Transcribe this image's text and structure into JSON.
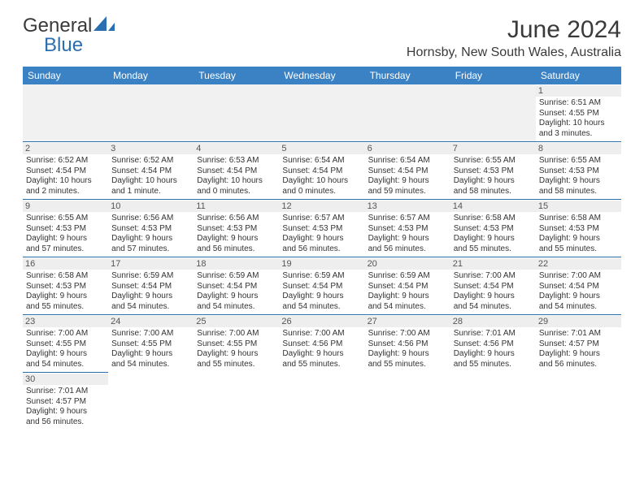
{
  "brand": {
    "part1": "General",
    "part2": "Blue"
  },
  "title": "June 2024",
  "location": "Hornsby, New South Wales, Australia",
  "colors": {
    "header_bg": "#3b82c4",
    "header_fg": "#ffffff",
    "row_border": "#2a6fb0",
    "daynum_bg": "#eeeeee",
    "brand_blue": "#2a6fb0",
    "text": "#3a3a3a"
  },
  "day_headers": [
    "Sunday",
    "Monday",
    "Tuesday",
    "Wednesday",
    "Thursday",
    "Friday",
    "Saturday"
  ],
  "weeks": [
    [
      null,
      null,
      null,
      null,
      null,
      null,
      {
        "n": "1",
        "sunrise": "Sunrise: 6:51 AM",
        "sunset": "Sunset: 4:55 PM",
        "day1": "Daylight: 10 hours",
        "day2": "and 3 minutes."
      }
    ],
    [
      {
        "n": "2",
        "sunrise": "Sunrise: 6:52 AM",
        "sunset": "Sunset: 4:54 PM",
        "day1": "Daylight: 10 hours",
        "day2": "and 2 minutes."
      },
      {
        "n": "3",
        "sunrise": "Sunrise: 6:52 AM",
        "sunset": "Sunset: 4:54 PM",
        "day1": "Daylight: 10 hours",
        "day2": "and 1 minute."
      },
      {
        "n": "4",
        "sunrise": "Sunrise: 6:53 AM",
        "sunset": "Sunset: 4:54 PM",
        "day1": "Daylight: 10 hours",
        "day2": "and 0 minutes."
      },
      {
        "n": "5",
        "sunrise": "Sunrise: 6:54 AM",
        "sunset": "Sunset: 4:54 PM",
        "day1": "Daylight: 10 hours",
        "day2": "and 0 minutes."
      },
      {
        "n": "6",
        "sunrise": "Sunrise: 6:54 AM",
        "sunset": "Sunset: 4:54 PM",
        "day1": "Daylight: 9 hours",
        "day2": "and 59 minutes."
      },
      {
        "n": "7",
        "sunrise": "Sunrise: 6:55 AM",
        "sunset": "Sunset: 4:53 PM",
        "day1": "Daylight: 9 hours",
        "day2": "and 58 minutes."
      },
      {
        "n": "8",
        "sunrise": "Sunrise: 6:55 AM",
        "sunset": "Sunset: 4:53 PM",
        "day1": "Daylight: 9 hours",
        "day2": "and 58 minutes."
      }
    ],
    [
      {
        "n": "9",
        "sunrise": "Sunrise: 6:55 AM",
        "sunset": "Sunset: 4:53 PM",
        "day1": "Daylight: 9 hours",
        "day2": "and 57 minutes."
      },
      {
        "n": "10",
        "sunrise": "Sunrise: 6:56 AM",
        "sunset": "Sunset: 4:53 PM",
        "day1": "Daylight: 9 hours",
        "day2": "and 57 minutes."
      },
      {
        "n": "11",
        "sunrise": "Sunrise: 6:56 AM",
        "sunset": "Sunset: 4:53 PM",
        "day1": "Daylight: 9 hours",
        "day2": "and 56 minutes."
      },
      {
        "n": "12",
        "sunrise": "Sunrise: 6:57 AM",
        "sunset": "Sunset: 4:53 PM",
        "day1": "Daylight: 9 hours",
        "day2": "and 56 minutes."
      },
      {
        "n": "13",
        "sunrise": "Sunrise: 6:57 AM",
        "sunset": "Sunset: 4:53 PM",
        "day1": "Daylight: 9 hours",
        "day2": "and 56 minutes."
      },
      {
        "n": "14",
        "sunrise": "Sunrise: 6:58 AM",
        "sunset": "Sunset: 4:53 PM",
        "day1": "Daylight: 9 hours",
        "day2": "and 55 minutes."
      },
      {
        "n": "15",
        "sunrise": "Sunrise: 6:58 AM",
        "sunset": "Sunset: 4:53 PM",
        "day1": "Daylight: 9 hours",
        "day2": "and 55 minutes."
      }
    ],
    [
      {
        "n": "16",
        "sunrise": "Sunrise: 6:58 AM",
        "sunset": "Sunset: 4:53 PM",
        "day1": "Daylight: 9 hours",
        "day2": "and 55 minutes."
      },
      {
        "n": "17",
        "sunrise": "Sunrise: 6:59 AM",
        "sunset": "Sunset: 4:54 PM",
        "day1": "Daylight: 9 hours",
        "day2": "and 54 minutes."
      },
      {
        "n": "18",
        "sunrise": "Sunrise: 6:59 AM",
        "sunset": "Sunset: 4:54 PM",
        "day1": "Daylight: 9 hours",
        "day2": "and 54 minutes."
      },
      {
        "n": "19",
        "sunrise": "Sunrise: 6:59 AM",
        "sunset": "Sunset: 4:54 PM",
        "day1": "Daylight: 9 hours",
        "day2": "and 54 minutes."
      },
      {
        "n": "20",
        "sunrise": "Sunrise: 6:59 AM",
        "sunset": "Sunset: 4:54 PM",
        "day1": "Daylight: 9 hours",
        "day2": "and 54 minutes."
      },
      {
        "n": "21",
        "sunrise": "Sunrise: 7:00 AM",
        "sunset": "Sunset: 4:54 PM",
        "day1": "Daylight: 9 hours",
        "day2": "and 54 minutes."
      },
      {
        "n": "22",
        "sunrise": "Sunrise: 7:00 AM",
        "sunset": "Sunset: 4:54 PM",
        "day1": "Daylight: 9 hours",
        "day2": "and 54 minutes."
      }
    ],
    [
      {
        "n": "23",
        "sunrise": "Sunrise: 7:00 AM",
        "sunset": "Sunset: 4:55 PM",
        "day1": "Daylight: 9 hours",
        "day2": "and 54 minutes."
      },
      {
        "n": "24",
        "sunrise": "Sunrise: 7:00 AM",
        "sunset": "Sunset: 4:55 PM",
        "day1": "Daylight: 9 hours",
        "day2": "and 54 minutes."
      },
      {
        "n": "25",
        "sunrise": "Sunrise: 7:00 AM",
        "sunset": "Sunset: 4:55 PM",
        "day1": "Daylight: 9 hours",
        "day2": "and 55 minutes."
      },
      {
        "n": "26",
        "sunrise": "Sunrise: 7:00 AM",
        "sunset": "Sunset: 4:56 PM",
        "day1": "Daylight: 9 hours",
        "day2": "and 55 minutes."
      },
      {
        "n": "27",
        "sunrise": "Sunrise: 7:00 AM",
        "sunset": "Sunset: 4:56 PM",
        "day1": "Daylight: 9 hours",
        "day2": "and 55 minutes."
      },
      {
        "n": "28",
        "sunrise": "Sunrise: 7:01 AM",
        "sunset": "Sunset: 4:56 PM",
        "day1": "Daylight: 9 hours",
        "day2": "and 55 minutes."
      },
      {
        "n": "29",
        "sunrise": "Sunrise: 7:01 AM",
        "sunset": "Sunset: 4:57 PM",
        "day1": "Daylight: 9 hours",
        "day2": "and 56 minutes."
      }
    ],
    [
      {
        "n": "30",
        "sunrise": "Sunrise: 7:01 AM",
        "sunset": "Sunset: 4:57 PM",
        "day1": "Daylight: 9 hours",
        "day2": "and 56 minutes."
      },
      null,
      null,
      null,
      null,
      null,
      null
    ]
  ]
}
